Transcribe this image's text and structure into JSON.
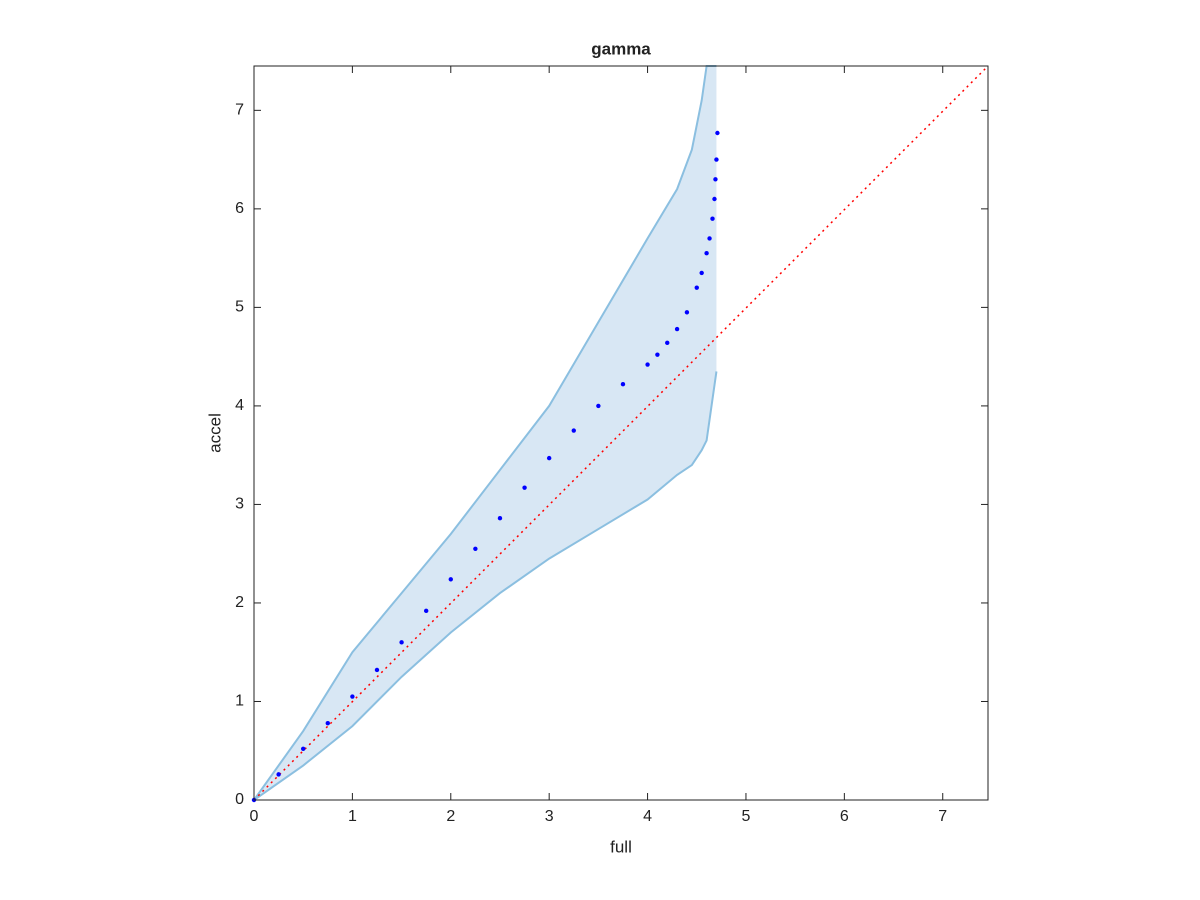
{
  "chart_data": {
    "type": "scatter",
    "title": "gamma",
    "xlabel": "full",
    "ylabel": "accel",
    "xlim": [
      0,
      7.46
    ],
    "ylim": [
      0,
      7.45
    ],
    "xticks": [
      0,
      1,
      2,
      3,
      4,
      5,
      6,
      7
    ],
    "yticks": [
      0,
      1,
      2,
      3,
      4,
      5,
      6,
      7
    ],
    "band": {
      "color": "#d8e7f4",
      "edge_color": "#8bbfe0",
      "x": [
        0,
        0.5,
        1,
        1.5,
        2,
        2.5,
        3,
        3.5,
        4,
        4.3,
        4.45,
        4.55,
        4.6,
        4.7
      ],
      "upper": [
        0,
        0.7,
        1.5,
        2.1,
        2.7,
        3.35,
        4.0,
        4.85,
        5.7,
        6.2,
        6.6,
        7.1,
        7.45,
        7.45
      ],
      "lower": [
        0,
        0.35,
        0.75,
        1.25,
        1.7,
        2.1,
        2.45,
        2.75,
        3.05,
        3.3,
        3.4,
        3.55,
        3.65,
        4.35
      ]
    },
    "series": [
      {
        "color": "#0000ff",
        "x": [
          0,
          0.25,
          0.5,
          0.75,
          1,
          1.25,
          1.5,
          1.75,
          2,
          2.25,
          2.5,
          2.75,
          3,
          3.25,
          3.5,
          3.75,
          4,
          4.1,
          4.2,
          4.3,
          4.4,
          4.5,
          4.55,
          4.6,
          4.63,
          4.66,
          4.68,
          4.69,
          4.7,
          4.71
        ],
        "values": [
          0,
          0.26,
          0.52,
          0.78,
          1.05,
          1.32,
          1.6,
          1.92,
          2.24,
          2.55,
          2.86,
          3.17,
          3.47,
          3.75,
          4.0,
          4.22,
          4.42,
          4.52,
          4.64,
          4.78,
          4.95,
          5.2,
          5.35,
          5.55,
          5.7,
          5.9,
          6.1,
          6.3,
          6.5,
          6.77
        ]
      }
    ],
    "reference_line": {
      "color": "#ff0000",
      "x": [
        0,
        7.46
      ],
      "values": [
        0,
        7.45
      ]
    }
  }
}
